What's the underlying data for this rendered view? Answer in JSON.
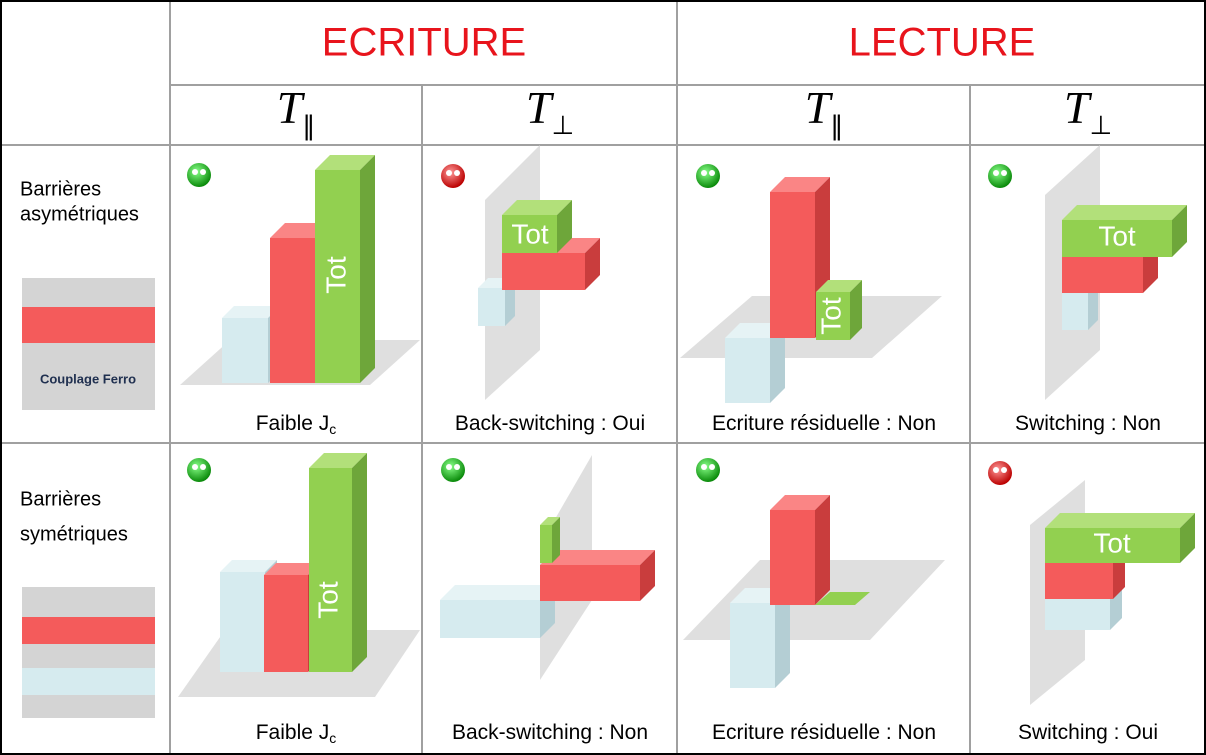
{
  "header": {
    "groups": [
      "ECRITURE",
      "LECTURE"
    ],
    "columns": [
      {
        "symbol": "T",
        "subscript": "‖"
      },
      {
        "symbol": "T",
        "subscript": "⊥"
      },
      {
        "symbol": "T",
        "subscript": "‖"
      },
      {
        "symbol": "T",
        "subscript": "⊥"
      }
    ]
  },
  "rows": [
    {
      "label": [
        "Barrières",
        "asymétriques"
      ],
      "stack_label": "Couplage Ferro",
      "cells": [
        {
          "caption": {
            "text": "Faible J",
            "subscript": "c"
          },
          "bar_label": "Tot"
        },
        {
          "caption": {
            "text": "Back-switching : Oui"
          },
          "bar_label": "Tot"
        },
        {
          "caption": {
            "text": "Ecriture résiduelle : Non"
          },
          "bar_label": "Tot"
        },
        {
          "caption": {
            "text": "Switching : Non"
          },
          "bar_label": "Tot"
        }
      ]
    },
    {
      "label": [
        "Barrières",
        "symétriques"
      ],
      "cells": [
        {
          "caption": {
            "text": "Faible J",
            "subscript": "c"
          },
          "bar_label": "Tot"
        },
        {
          "caption": {
            "text": "Back-switching : Non"
          }
        },
        {
          "caption": {
            "text": "Ecriture résiduelle : Non"
          }
        },
        {
          "caption": {
            "text": "Switching : Oui"
          },
          "bar_label": "Tot"
        }
      ]
    }
  ]
}
